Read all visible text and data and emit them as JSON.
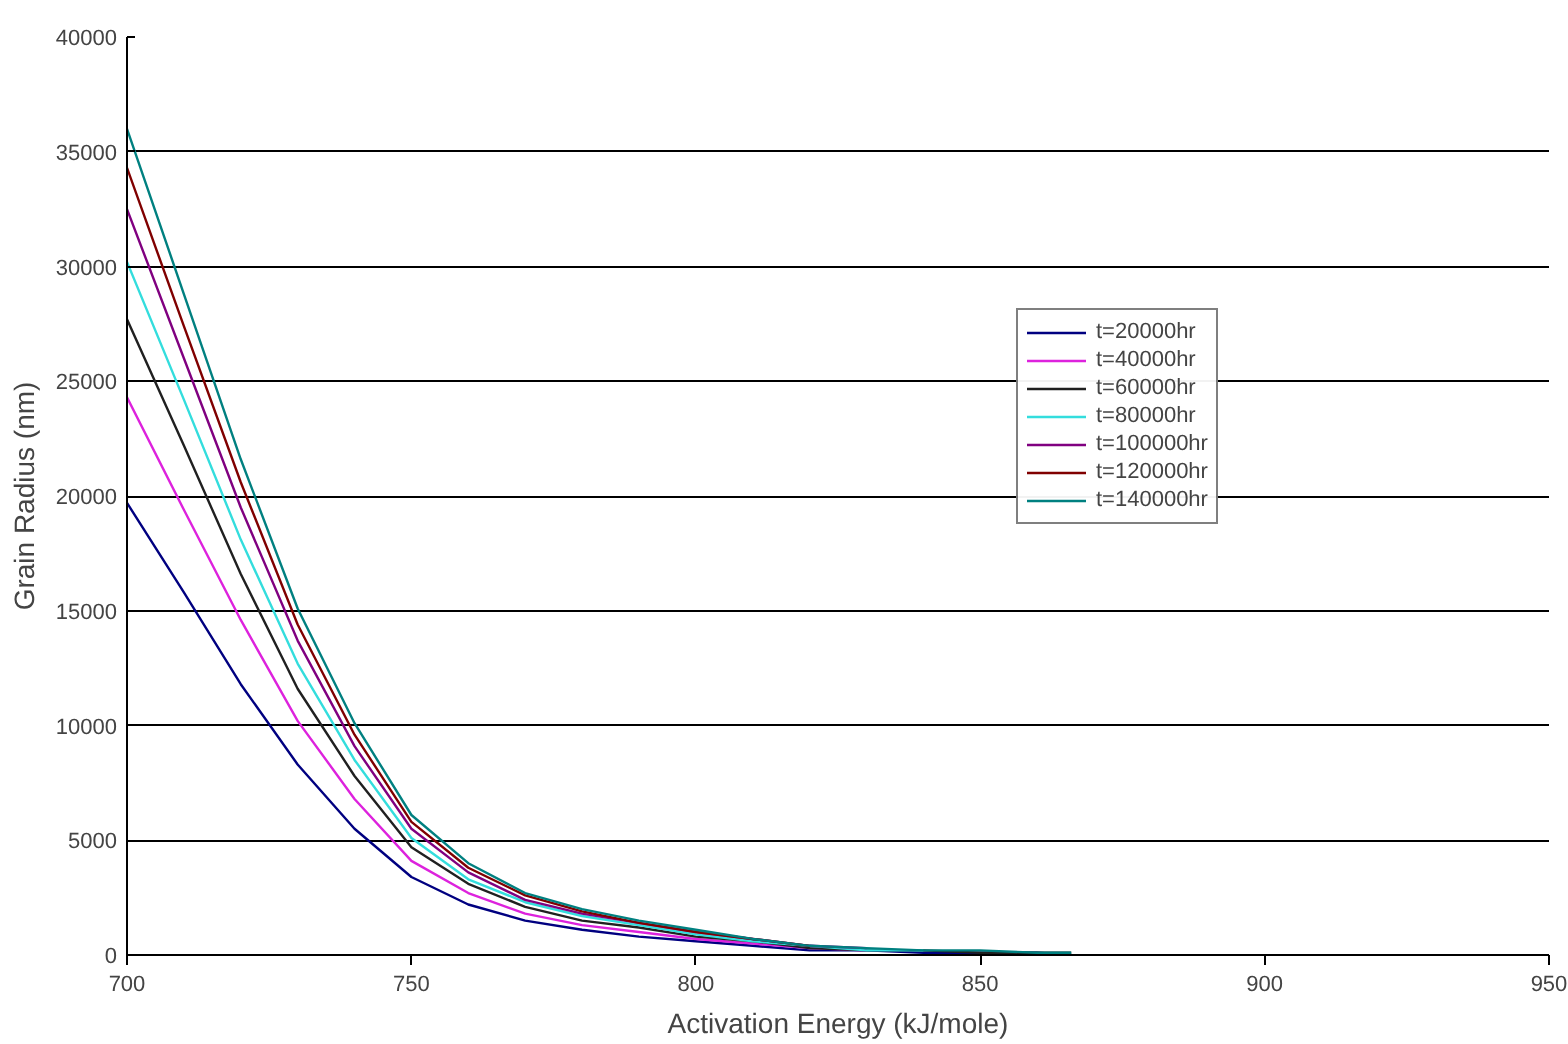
{
  "chart_data": {
    "type": "line",
    "xlabel": "Activation Energy (kJ/mole)",
    "ylabel": "Grain Radius (nm)",
    "x": [
      700,
      710,
      720,
      730,
      740,
      750,
      760,
      770,
      780,
      790,
      800,
      810,
      820,
      830,
      840,
      850,
      860,
      866
    ],
    "xlim": [
      700,
      950
    ],
    "xticks": [
      700,
      750,
      800,
      850,
      900,
      950
    ],
    "ylim": [
      0,
      40000
    ],
    "yticks": [
      0,
      5000,
      10000,
      15000,
      20000,
      25000,
      30000,
      35000,
      40000
    ],
    "grid": "y",
    "legend": "top right",
    "marker": "none",
    "line_style": "solid",
    "series": [
      {
        "name": "t=20000hr",
        "color": "#000080",
        "values": [
          19700,
          15800,
          11800,
          8300,
          5500,
          3400,
          2200,
          1500,
          1100,
          800,
          600,
          400,
          200,
          200,
          100,
          100,
          100,
          0
        ]
      },
      {
        "name": "t=40000hr",
        "color": "#dd22dd",
        "x": [
          700,
          710,
          720,
          730,
          740,
          750,
          760,
          770,
          780,
          790,
          800,
          810,
          820,
          830
        ],
        "values": [
          24300,
          19400,
          14600,
          10200,
          6800,
          4100,
          2700,
          1800,
          1300,
          1000,
          700,
          500,
          300,
          200
        ]
      },
      {
        "name": "t=60000hr",
        "color": "#202020",
        "values": [
          27700,
          22200,
          16600,
          11600,
          7800,
          4700,
          3100,
          2100,
          1500,
          1200,
          800,
          600,
          300,
          200,
          200,
          100,
          100,
          100
        ]
      },
      {
        "name": "t=80000hr",
        "color": "#33dddd",
        "x": [
          700,
          710,
          720,
          730,
          740,
          750,
          760,
          770,
          780,
          790,
          800,
          810,
          820,
          830,
          840
        ],
        "values": [
          30200,
          24200,
          18100,
          12700,
          8500,
          5100,
          3300,
          2300,
          1700,
          1300,
          900,
          600,
          400,
          200,
          200
        ]
      },
      {
        "name": "t=100000hr",
        "color": "#800080",
        "x": [
          700,
          710,
          720,
          730,
          740,
          750,
          760,
          770,
          780,
          790,
          800,
          810,
          820,
          830
        ],
        "values": [
          32500,
          26000,
          19500,
          13700,
          9100,
          5500,
          3600,
          2400,
          1800,
          1400,
          1000,
          700,
          400,
          300
        ]
      },
      {
        "name": "t=120000hr",
        "color": "#800000",
        "x": [
          700,
          710,
          720,
          730,
          740,
          750,
          760,
          770,
          780,
          790,
          800,
          810,
          820
        ],
        "values": [
          34300,
          27400,
          20600,
          14400,
          9600,
          5800,
          3800,
          2600,
          1900,
          1400,
          1000,
          700,
          400
        ]
      },
      {
        "name": "t=140000hr",
        "color": "#008080",
        "values": [
          36000,
          28800,
          21600,
          15100,
          10100,
          6100,
          4000,
          2700,
          2000,
          1500,
          1100,
          700,
          400,
          300,
          200,
          200,
          100,
          100
        ]
      }
    ]
  }
}
